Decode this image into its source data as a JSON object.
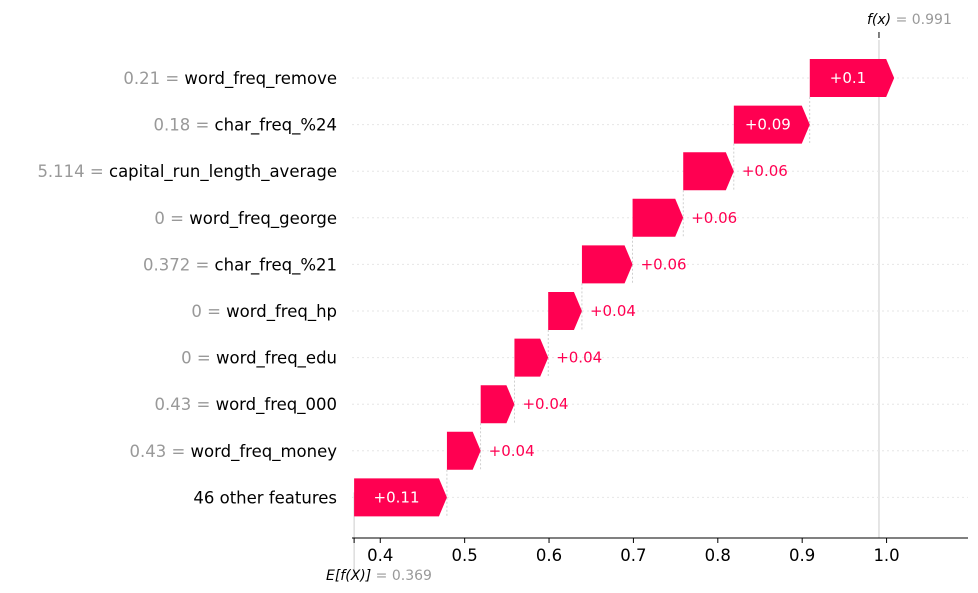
{
  "chart_data": {
    "type": "waterfall",
    "f_x": {
      "label_fn": "f",
      "label_arg": "x",
      "value": "0.991",
      "numeric": 0.991
    },
    "expected": {
      "label_fn": "E[f(X)]",
      "value": "0.369",
      "numeric": 0.369
    },
    "features": [
      {
        "value": "0.21",
        "name": "word_freq_remove",
        "contribution": 0.1,
        "label": "+0.1"
      },
      {
        "value": "0.18",
        "name": "char_freq_%24",
        "contribution": 0.09,
        "label": "+0.09"
      },
      {
        "value": "5.114",
        "name": "capital_run_length_average",
        "contribution": 0.06,
        "label": "+0.06"
      },
      {
        "value": "0",
        "name": "word_freq_george",
        "contribution": 0.06,
        "label": "+0.06"
      },
      {
        "value": "0.372",
        "name": "char_freq_%21",
        "contribution": 0.06,
        "label": "+0.06"
      },
      {
        "value": "0",
        "name": "word_freq_hp",
        "contribution": 0.04,
        "label": "+0.04"
      },
      {
        "value": "0",
        "name": "word_freq_edu",
        "contribution": 0.04,
        "label": "+0.04"
      },
      {
        "value": "0.43",
        "name": "word_freq_000",
        "contribution": 0.04,
        "label": "+0.04"
      },
      {
        "value": "0.43",
        "name": "word_freq_money",
        "contribution": 0.04,
        "label": "+0.04"
      },
      {
        "value": "",
        "name": "46 other features",
        "contribution": 0.11,
        "label": "+0.11"
      }
    ],
    "x_ticks": [
      "0.4",
      "0.5",
      "0.6",
      "0.7",
      "0.8",
      "0.9",
      "1.0"
    ],
    "xlim": [
      0.3665,
      1.0965
    ],
    "positive_color": "#ff0051",
    "label_inside_color": "#ffffff"
  }
}
